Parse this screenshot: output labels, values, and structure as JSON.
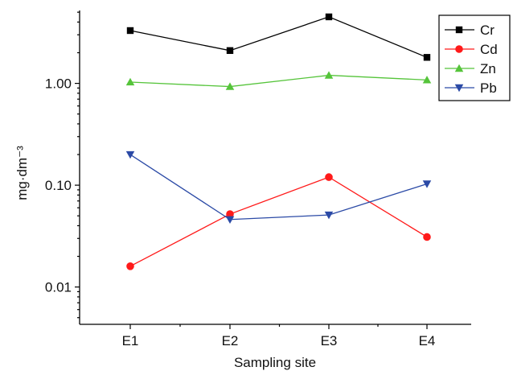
{
  "chart_data": {
    "type": "line",
    "x_scale": "categorical",
    "y_scale": "log",
    "categories": [
      "E1",
      "E2",
      "E3",
      "E4"
    ],
    "xlabel": "Sampling site",
    "ylabel": "mg·dm⁻³",
    "ylim": [
      0.0043,
      5.2
    ],
    "y_ticks": [
      {
        "value": 0.01,
        "label": "0.01"
      },
      {
        "value": 0.1,
        "label": "0.10"
      },
      {
        "value": 1,
        "label": "1.00"
      }
    ],
    "grid": false,
    "legend_position": "top-right",
    "series": [
      {
        "name": "Cr",
        "color": "#000000",
        "marker": "square",
        "values": [
          3.3,
          2.1,
          4.5,
          1.8
        ]
      },
      {
        "name": "Cd",
        "color": "#ff1a1a",
        "marker": "circle",
        "values": [
          0.016,
          0.052,
          0.12,
          0.031
        ]
      },
      {
        "name": "Zn",
        "color": "#55c43a",
        "marker": "triangle-up",
        "values": [
          1.03,
          0.93,
          1.2,
          1.08
        ]
      },
      {
        "name": "Pb",
        "color": "#2b4aa6",
        "marker": "triangle-down",
        "values": [
          0.2,
          0.046,
          0.051,
          0.103
        ]
      }
    ]
  }
}
